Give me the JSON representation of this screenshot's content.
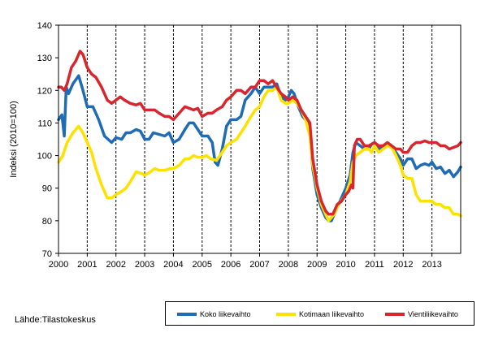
{
  "chart_data": {
    "type": "line",
    "title": "",
    "xlabel": "",
    "ylabel": "Indeksi (2010=100)",
    "ylim": [
      70,
      140
    ],
    "yticks": [
      "70",
      "80",
      "90",
      "100",
      "110",
      "120",
      "130",
      "140"
    ],
    "xlim": [
      2000,
      2014
    ],
    "xticks": [
      "2000",
      "2001",
      "2002",
      "2003",
      "2004",
      "2005",
      "2006",
      "2007",
      "2008",
      "2009",
      "2010",
      "2011",
      "2012",
      "2013"
    ],
    "grid": "vertical dashed at year starts",
    "legend_position": "bottom-right",
    "series": [
      {
        "name": "Koko liikevaihto",
        "color": "#1f6bb5",
        "points": [
          [
            2000.0,
            111
          ],
          [
            2000.12,
            112.5
          ],
          [
            2000.2,
            106
          ],
          [
            2000.27,
            121
          ],
          [
            2000.35,
            119
          ],
          [
            2000.5,
            122
          ],
          [
            2000.7,
            124.5
          ],
          [
            2000.85,
            120
          ],
          [
            2001.0,
            115
          ],
          [
            2001.2,
            115
          ],
          [
            2001.4,
            111
          ],
          [
            2001.6,
            106
          ],
          [
            2001.85,
            104
          ],
          [
            2002.0,
            105.5
          ],
          [
            2002.2,
            105
          ],
          [
            2002.35,
            107
          ],
          [
            2002.5,
            107
          ],
          [
            2002.7,
            108
          ],
          [
            2002.85,
            107.5
          ],
          [
            2003.0,
            105
          ],
          [
            2003.15,
            105
          ],
          [
            2003.3,
            107
          ],
          [
            2003.5,
            106.5
          ],
          [
            2003.7,
            106
          ],
          [
            2003.85,
            107
          ],
          [
            2004.0,
            104
          ],
          [
            2004.2,
            105
          ],
          [
            2004.4,
            108
          ],
          [
            2004.55,
            110
          ],
          [
            2004.7,
            110
          ],
          [
            2004.85,
            108
          ],
          [
            2005.0,
            106
          ],
          [
            2005.2,
            106
          ],
          [
            2005.35,
            104
          ],
          [
            2005.45,
            98
          ],
          [
            2005.55,
            97
          ],
          [
            2005.7,
            102
          ],
          [
            2005.85,
            109
          ],
          [
            2006.0,
            111
          ],
          [
            2006.2,
            111
          ],
          [
            2006.35,
            112
          ],
          [
            2006.5,
            117
          ],
          [
            2006.7,
            119
          ],
          [
            2006.85,
            121
          ],
          [
            2007.0,
            119
          ],
          [
            2007.15,
            121
          ],
          [
            2007.3,
            121
          ],
          [
            2007.45,
            121
          ],
          [
            2007.6,
            122
          ],
          [
            2007.75,
            118
          ],
          [
            2007.9,
            117
          ],
          [
            2008.0,
            118
          ],
          [
            2008.1,
            120
          ],
          [
            2008.2,
            119
          ],
          [
            2008.35,
            115
          ],
          [
            2008.5,
            112
          ],
          [
            2008.6,
            111
          ],
          [
            2008.75,
            108
          ],
          [
            2008.85,
            96
          ],
          [
            2009.0,
            88
          ],
          [
            2009.15,
            84
          ],
          [
            2009.3,
            81
          ],
          [
            2009.4,
            80
          ],
          [
            2009.5,
            80
          ],
          [
            2009.6,
            82
          ],
          [
            2009.75,
            85
          ],
          [
            2010.0,
            90
          ],
          [
            2010.15,
            94
          ],
          [
            2010.25,
            101
          ],
          [
            2010.35,
            104
          ],
          [
            2010.5,
            103
          ],
          [
            2010.65,
            102
          ],
          [
            2010.8,
            102
          ],
          [
            2010.9,
            103.5
          ],
          [
            2011.0,
            104
          ],
          [
            2011.15,
            102
          ],
          [
            2011.3,
            102.5
          ],
          [
            2011.45,
            103
          ],
          [
            2011.6,
            102.5
          ],
          [
            2011.75,
            101
          ],
          [
            2011.9,
            99
          ],
          [
            2012.0,
            97
          ],
          [
            2012.15,
            99
          ],
          [
            2012.3,
            99
          ],
          [
            2012.45,
            96
          ],
          [
            2012.6,
            97
          ],
          [
            2012.75,
            97.5
          ],
          [
            2012.9,
            97
          ],
          [
            2013.0,
            98
          ],
          [
            2013.15,
            96
          ],
          [
            2013.3,
            96.5
          ],
          [
            2013.45,
            94.5
          ],
          [
            2013.6,
            95.5
          ],
          [
            2013.75,
            93.5
          ],
          [
            2013.9,
            95
          ],
          [
            2014.0,
            96.5
          ]
        ]
      },
      {
        "name": "Kotimaan liikevaihto",
        "color": "#ffe100",
        "points": [
          [
            2000.0,
            98
          ],
          [
            2000.15,
            100
          ],
          [
            2000.3,
            104
          ],
          [
            2000.5,
            107
          ],
          [
            2000.7,
            109
          ],
          [
            2000.85,
            107
          ],
          [
            2001.0,
            104
          ],
          [
            2001.15,
            101
          ],
          [
            2001.3,
            96
          ],
          [
            2001.5,
            91
          ],
          [
            2001.7,
            87
          ],
          [
            2001.85,
            87
          ],
          [
            2002.0,
            88
          ],
          [
            2002.2,
            89
          ],
          [
            2002.35,
            90
          ],
          [
            2002.5,
            92
          ],
          [
            2002.7,
            95
          ],
          [
            2002.9,
            94.5
          ],
          [
            2003.0,
            94
          ],
          [
            2003.2,
            95
          ],
          [
            2003.35,
            96
          ],
          [
            2003.5,
            95.5
          ],
          [
            2003.7,
            95.5
          ],
          [
            2003.9,
            96
          ],
          [
            2004.0,
            96
          ],
          [
            2004.2,
            97
          ],
          [
            2004.4,
            99
          ],
          [
            2004.55,
            99
          ],
          [
            2004.7,
            100
          ],
          [
            2004.85,
            99.5
          ],
          [
            2005.0,
            99.5
          ],
          [
            2005.15,
            100
          ],
          [
            2005.3,
            99
          ],
          [
            2005.5,
            98.5
          ],
          [
            2005.7,
            101
          ],
          [
            2005.85,
            103
          ],
          [
            2006.0,
            104
          ],
          [
            2006.2,
            105
          ],
          [
            2006.35,
            107
          ],
          [
            2006.5,
            109
          ],
          [
            2006.7,
            112
          ],
          [
            2006.85,
            114
          ],
          [
            2007.0,
            115
          ],
          [
            2007.15,
            118
          ],
          [
            2007.3,
            120
          ],
          [
            2007.45,
            120
          ],
          [
            2007.6,
            121
          ],
          [
            2007.75,
            117
          ],
          [
            2007.9,
            116
          ],
          [
            2008.0,
            116
          ],
          [
            2008.15,
            117
          ],
          [
            2008.3,
            116
          ],
          [
            2008.45,
            114
          ],
          [
            2008.6,
            111
          ],
          [
            2008.75,
            106
          ],
          [
            2008.85,
            97
          ],
          [
            2009.0,
            90
          ],
          [
            2009.15,
            85
          ],
          [
            2009.3,
            82
          ],
          [
            2009.4,
            80
          ],
          [
            2009.5,
            81
          ],
          [
            2009.6,
            82
          ],
          [
            2009.75,
            85
          ],
          [
            2010.0,
            88
          ],
          [
            2010.15,
            92
          ],
          [
            2010.25,
            98
          ],
          [
            2010.35,
            100
          ],
          [
            2010.5,
            101
          ],
          [
            2010.65,
            102
          ],
          [
            2010.8,
            102
          ],
          [
            2010.9,
            101
          ],
          [
            2011.0,
            103
          ],
          [
            2011.15,
            101
          ],
          [
            2011.3,
            102
          ],
          [
            2011.45,
            103
          ],
          [
            2011.6,
            102.5
          ],
          [
            2011.75,
            100
          ],
          [
            2011.9,
            97
          ],
          [
            2012.0,
            94
          ],
          [
            2012.15,
            93
          ],
          [
            2012.3,
            93
          ],
          [
            2012.45,
            88
          ],
          [
            2012.6,
            86
          ],
          [
            2012.75,
            86
          ],
          [
            2012.9,
            86
          ],
          [
            2013.0,
            86
          ],
          [
            2013.15,
            85
          ],
          [
            2013.3,
            85
          ],
          [
            2013.45,
            84
          ],
          [
            2013.6,
            84
          ],
          [
            2013.75,
            82
          ],
          [
            2013.9,
            82
          ],
          [
            2014.0,
            81.5
          ]
        ]
      },
      {
        "name": "Vientiliikevaihto",
        "color": "#d7262d",
        "points": [
          [
            2000.0,
            121
          ],
          [
            2000.1,
            121
          ],
          [
            2000.2,
            120
          ],
          [
            2000.3,
            122
          ],
          [
            2000.45,
            127
          ],
          [
            2000.6,
            129
          ],
          [
            2000.75,
            132
          ],
          [
            2000.85,
            131
          ],
          [
            2001.0,
            127
          ],
          [
            2001.15,
            125
          ],
          [
            2001.3,
            124
          ],
          [
            2001.5,
            121
          ],
          [
            2001.7,
            117
          ],
          [
            2001.85,
            116
          ],
          [
            2002.0,
            117
          ],
          [
            2002.15,
            118
          ],
          [
            2002.3,
            117
          ],
          [
            2002.5,
            116
          ],
          [
            2002.7,
            115.5
          ],
          [
            2002.85,
            116
          ],
          [
            2003.0,
            114
          ],
          [
            2003.2,
            114
          ],
          [
            2003.35,
            114
          ],
          [
            2003.5,
            113
          ],
          [
            2003.7,
            112
          ],
          [
            2003.85,
            112
          ],
          [
            2004.0,
            111
          ],
          [
            2004.2,
            113
          ],
          [
            2004.4,
            115
          ],
          [
            2004.55,
            114.5
          ],
          [
            2004.7,
            114
          ],
          [
            2004.85,
            114.5
          ],
          [
            2005.0,
            112
          ],
          [
            2005.2,
            113
          ],
          [
            2005.35,
            113
          ],
          [
            2005.5,
            114
          ],
          [
            2005.7,
            115
          ],
          [
            2005.85,
            117
          ],
          [
            2006.0,
            118
          ],
          [
            2006.2,
            120
          ],
          [
            2006.35,
            120
          ],
          [
            2006.5,
            119
          ],
          [
            2006.7,
            121
          ],
          [
            2006.85,
            121
          ],
          [
            2007.0,
            123
          ],
          [
            2007.15,
            123
          ],
          [
            2007.3,
            122
          ],
          [
            2007.45,
            123
          ],
          [
            2007.6,
            121
          ],
          [
            2007.75,
            119
          ],
          [
            2007.9,
            118
          ],
          [
            2008.0,
            117
          ],
          [
            2008.15,
            118
          ],
          [
            2008.3,
            117
          ],
          [
            2008.45,
            114
          ],
          [
            2008.6,
            112
          ],
          [
            2008.75,
            110
          ],
          [
            2008.85,
            99
          ],
          [
            2009.0,
            91
          ],
          [
            2009.15,
            86
          ],
          [
            2009.3,
            83
          ],
          [
            2009.4,
            82
          ],
          [
            2009.55,
            82
          ],
          [
            2009.7,
            85
          ],
          [
            2009.85,
            86
          ],
          [
            2010.0,
            88
          ],
          [
            2010.1,
            89
          ],
          [
            2010.2,
            91
          ],
          [
            2010.25,
            90
          ],
          [
            2010.3,
            103
          ],
          [
            2010.4,
            105
          ],
          [
            2010.5,
            105
          ],
          [
            2010.65,
            103
          ],
          [
            2010.8,
            103
          ],
          [
            2010.9,
            103.5
          ],
          [
            2011.0,
            104
          ],
          [
            2011.15,
            103
          ],
          [
            2011.3,
            103
          ],
          [
            2011.45,
            104
          ],
          [
            2011.6,
            103
          ],
          [
            2011.75,
            102
          ],
          [
            2011.9,
            102
          ],
          [
            2012.0,
            101
          ],
          [
            2012.15,
            101
          ],
          [
            2012.3,
            103
          ],
          [
            2012.45,
            104
          ],
          [
            2012.6,
            104
          ],
          [
            2012.75,
            104.5
          ],
          [
            2012.9,
            104
          ],
          [
            2013.0,
            104
          ],
          [
            2013.15,
            104
          ],
          [
            2013.3,
            103
          ],
          [
            2013.45,
            103
          ],
          [
            2013.6,
            102
          ],
          [
            2013.75,
            102.5
          ],
          [
            2013.9,
            103
          ],
          [
            2014.0,
            104
          ]
        ]
      }
    ]
  },
  "source_text": "Lähde:Tilastokeskus",
  "legend": {
    "items": [
      {
        "label": "Koko liikevaihto",
        "color": "#1f6bb5"
      },
      {
        "label": "Kotimaan liikevaihto",
        "color": "#ffe100"
      },
      {
        "label": "Vientiliikevaihto",
        "color": "#d7262d"
      }
    ]
  }
}
